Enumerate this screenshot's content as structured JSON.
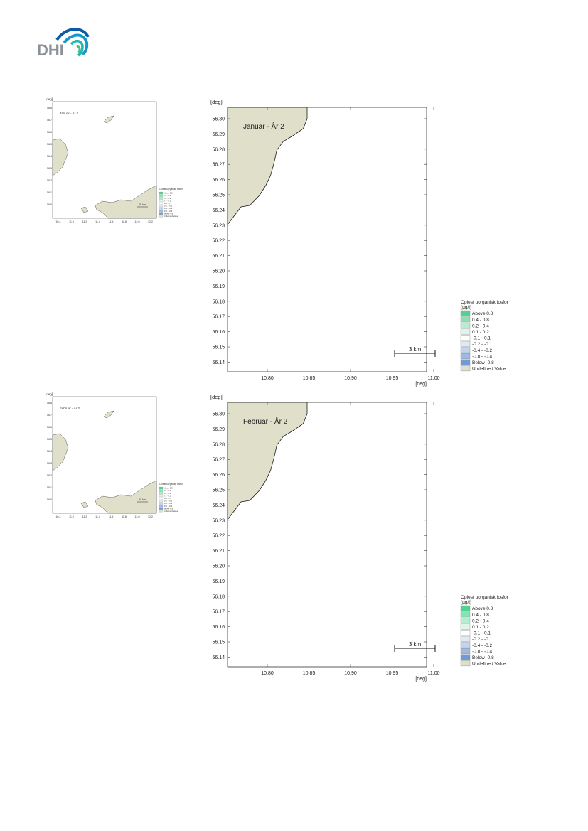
{
  "brand": {
    "name": "DHI",
    "colors": {
      "text": "#8a9199",
      "wave_dark": "#0a5aa5",
      "wave_mid": "#1598c9",
      "wave_light": "#22b7b0",
      "wave_green": "#40c187"
    }
  },
  "colors": {
    "land": "#e0dfca",
    "land_outline": "#1a1a1a",
    "water": "#ffffff"
  },
  "axis_unit": "[deg]",
  "x_ticks": [
    "10.80",
    "10.85",
    "10.90",
    "10.95",
    "11.00"
  ],
  "y_ticks": [
    "56.30",
    "56.29",
    "56.28",
    "56.27",
    "56.26",
    "56.25",
    "56.24",
    "56.23",
    "56.22",
    "56.21",
    "56.20",
    "56.19",
    "56.18",
    "56.17",
    "56.16",
    "56.15",
    "56.14"
  ],
  "scale_bar_label": "3 km",
  "legend": {
    "title_line1": "Oplest uorganisk fosfor",
    "title_line2": "(µg/l)",
    "items": [
      {
        "label": "Above  0.8",
        "color": "#4fd48f"
      },
      {
        "label": "0.4 -  0.8",
        "color": "#86e2b3"
      },
      {
        "label": "0.2 -  0.4",
        "color": "#b5eecf"
      },
      {
        "label": "0.1 -  0.2",
        "color": "#def6e8"
      },
      {
        "label": "-0.1 -  0.1",
        "color": "#ffffff"
      },
      {
        "label": "-0.2 - -0.1",
        "color": "#e2e9f4"
      },
      {
        "label": "-0.4 - -0.2",
        "color": "#c3d4ec"
      },
      {
        "label": "-0.8 - -0.4",
        "color": "#9dbae2"
      },
      {
        "label": "Below -0.8",
        "color": "#6f9bd6"
      },
      {
        "label": "Undefined Value",
        "color": "#e0dfca"
      }
    ]
  },
  "maps": [
    {
      "title": "Januar - År 2"
    },
    {
      "title": "Februar - År 2"
    }
  ],
  "overview": {
    "titles": [
      "Januar - År 2",
      "Februar - År 2"
    ],
    "y_ticks": [
      "56.8",
      "56.7",
      "56.6",
      "56.5",
      "56.4",
      "56.3",
      "56.2",
      "56.1",
      "56.0"
    ],
    "x_ticks": [
      "10.4",
      "11.0",
      "11.2",
      "11.4",
      "11.6",
      "11.8",
      "12.0",
      "12.2"
    ],
    "scale_bar_label": "15 km"
  }
}
